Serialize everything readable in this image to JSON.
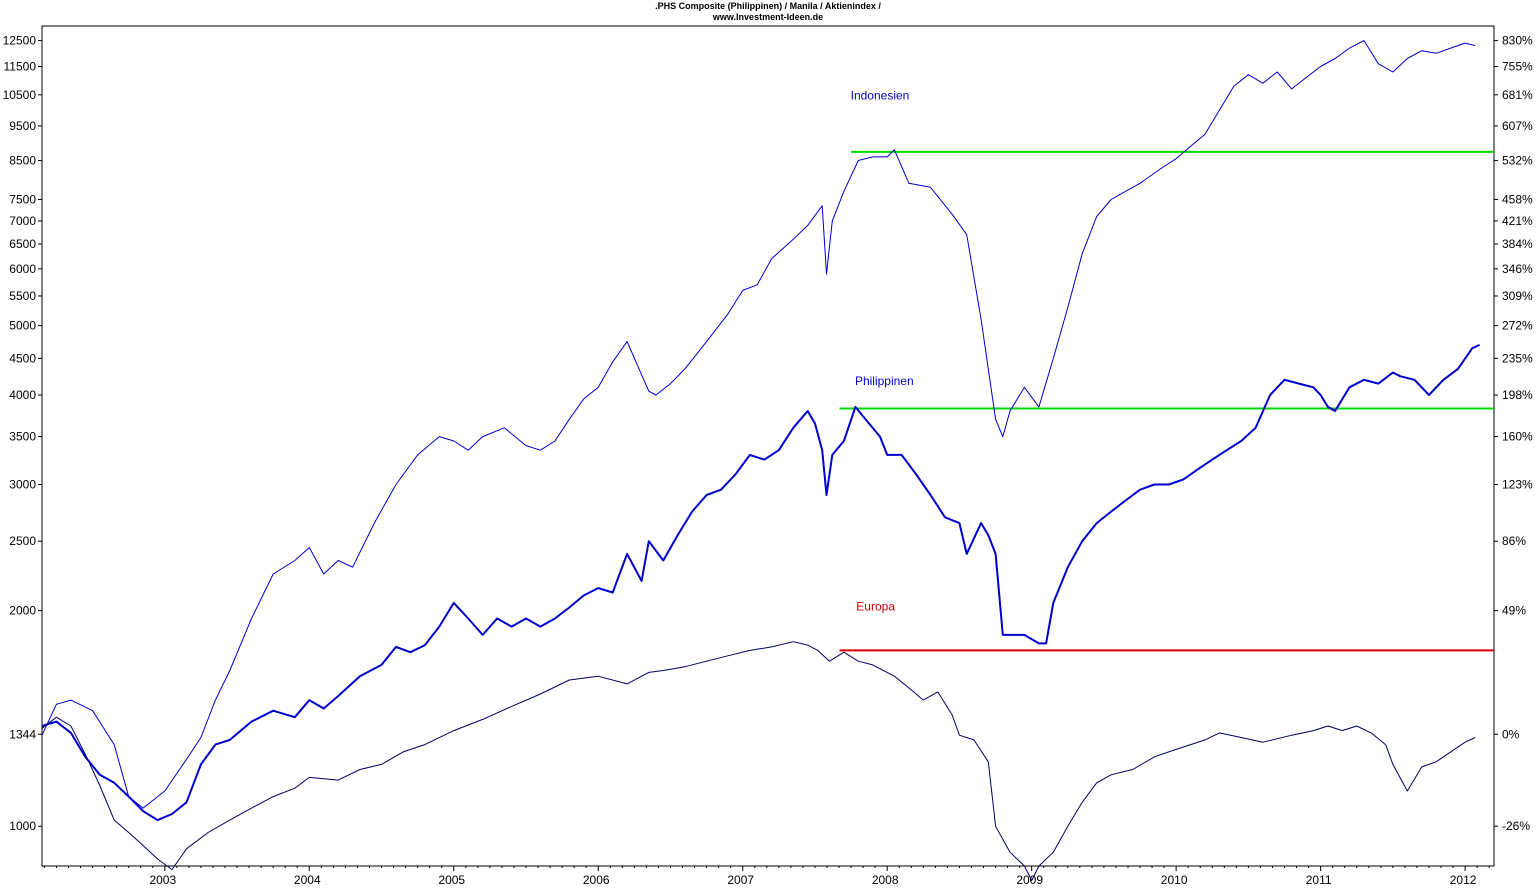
{
  "chart_data": {
    "type": "line",
    "title": ".PHS Composite (Philippinen) / Manila / Aktienindex /",
    "subtitle": "www.Investment-Ideen.de",
    "xlabel": "",
    "ylabel": "",
    "scale": "log",
    "grid": false,
    "legend": "none",
    "xlim": [
      2002.15,
      2012.2
    ],
    "ylim": [
      880,
      13100
    ],
    "x_ticks": [
      "2003",
      "2004",
      "2005",
      "2006",
      "2007",
      "2008",
      "2009",
      "2010",
      "2011",
      "2012"
    ],
    "y_ticks_left": [
      12500,
      11500,
      10500,
      9500,
      8500,
      7500,
      7000,
      6500,
      6000,
      5500,
      5000,
      4500,
      4000,
      3500,
      3000,
      2500,
      2000,
      1344,
      1000
    ],
    "y_ticks_left_labels": [
      "12500",
      "11500",
      "10500",
      "9500",
      "8500",
      "7500",
      "7000",
      "6500",
      "6000",
      "5500",
      "5000",
      "4500",
      "4000",
      "3500",
      "3000",
      "2500",
      "2000",
      "1344",
      "1000"
    ],
    "y_ticks_right": [
      12500,
      11500,
      10500,
      9500,
      8500,
      7500,
      7000,
      6500,
      6000,
      5500,
      5000,
      4500,
      4000,
      3500,
      3000,
      2500,
      2000,
      1344,
      1000
    ],
    "y_ticks_right_labels": [
      "830%",
      "755%",
      "681%",
      "607%",
      "532%",
      "458%",
      "421%",
      "384%",
      "346%",
      "309%",
      "272%",
      "235%",
      "198%",
      "160%",
      "123%",
      "86%",
      "49%",
      "0%",
      "-26%"
    ],
    "annotations": [
      {
        "text": "Indonesien",
        "x": 2007.95,
        "y": 10350,
        "color": "#0000cc"
      },
      {
        "text": "Philippinen",
        "x": 2007.98,
        "y": 4130,
        "color": "#0000cc"
      },
      {
        "text": "Europa",
        "x": 2007.92,
        "y": 2000,
        "color": "#cc0000"
      }
    ],
    "reference_lines": [
      {
        "y": 8740,
        "x_start": 2007.75,
        "x_end": 2012.2,
        "color": "#00dd00"
      },
      {
        "y": 3830,
        "x_start": 2007.67,
        "x_end": 2012.2,
        "color": "#00dd00"
      },
      {
        "y": 1760,
        "x_start": 2007.67,
        "x_end": 2012.2,
        "color": "#dd0000"
      }
    ],
    "series": [
      {
        "color": "#0000cc",
        "width": 1,
        "x": [
          2002.15,
          2002.25,
          2002.35,
          2002.5,
          2002.65,
          2002.75,
          2002.85,
          2003.0,
          2003.15,
          2003.25,
          2003.35,
          2003.45,
          2003.6,
          2003.75,
          2003.9,
          2004.0,
          2004.1,
          2004.2,
          2004.3,
          2004.45,
          2004.6,
          2004.75,
          2004.9,
          2005.0,
          2005.1,
          2005.2,
          2005.35,
          2005.5,
          2005.6,
          2005.7,
          2005.8,
          2005.9,
          2006.0,
          2006.1,
          2006.2,
          2006.35,
          2006.4,
          2006.5,
          2006.6,
          2006.75,
          2006.9,
          2007.0,
          2007.1,
          2007.2,
          2007.35,
          2007.45,
          2007.55,
          2007.58,
          2007.62,
          2007.7,
          2007.8,
          2007.9,
          2008.0,
          2008.05,
          2008.15,
          2008.3,
          2008.45,
          2008.55,
          2008.65,
          2008.75,
          2008.8,
          2008.85,
          2008.95,
          2009.05,
          2009.15,
          2009.25,
          2009.35,
          2009.45,
          2009.55,
          2009.65,
          2009.75,
          2009.9,
          2010.0,
          2010.1,
          2010.2,
          2010.3,
          2010.4,
          2010.5,
          2010.6,
          2010.7,
          2010.8,
          2010.9,
          2011.0,
          2011.1,
          2011.2,
          2011.3,
          2011.4,
          2011.5,
          2011.6,
          2011.7,
          2011.8,
          2011.9,
          2012.0,
          2012.07
        ],
        "values": [
          1340,
          1480,
          1500,
          1450,
          1300,
          1100,
          1060,
          1120,
          1240,
          1330,
          1500,
          1650,
          1950,
          2250,
          2350,
          2450,
          2250,
          2350,
          2300,
          2650,
          3000,
          3300,
          3500,
          3450,
          3350,
          3500,
          3600,
          3400,
          3350,
          3450,
          3700,
          3950,
          4100,
          4450,
          4750,
          4050,
          4000,
          4150,
          4350,
          4750,
          5200,
          5600,
          5700,
          6200,
          6600,
          6900,
          7350,
          5900,
          7000,
          7700,
          8500,
          8600,
          8600,
          8800,
          7900,
          7800,
          7150,
          6700,
          5100,
          3700,
          3500,
          3800,
          4100,
          3850,
          4500,
          5300,
          6300,
          7100,
          7500,
          7700,
          7900,
          8300,
          8550,
          8900,
          9250,
          10000,
          10800,
          11200,
          10900,
          11300,
          10700,
          11100,
          11500,
          11800,
          12200,
          12500,
          11600,
          11300,
          11800,
          12100,
          12000,
          12200,
          12400,
          12300
        ]
      },
      {
        "color": "#0000cc",
        "width": 2,
        "x": [
          2002.15,
          2002.25,
          2002.35,
          2002.45,
          2002.55,
          2002.65,
          2002.75,
          2002.85,
          2002.95,
          2003.05,
          2003.15,
          2003.25,
          2003.35,
          2003.45,
          2003.6,
          2003.75,
          2003.9,
          2004.0,
          2004.1,
          2004.2,
          2004.35,
          2004.5,
          2004.6,
          2004.7,
          2004.8,
          2004.9,
          2005.0,
          2005.1,
          2005.2,
          2005.3,
          2005.4,
          2005.5,
          2005.6,
          2005.7,
          2005.8,
          2005.9,
          2006.0,
          2006.1,
          2006.2,
          2006.3,
          2006.35,
          2006.45,
          2006.55,
          2006.65,
          2006.75,
          2006.85,
          2006.95,
          2007.05,
          2007.15,
          2007.25,
          2007.35,
          2007.45,
          2007.5,
          2007.55,
          2007.58,
          2007.62,
          2007.7,
          2007.78,
          2007.85,
          2007.95,
          2008.0,
          2008.1,
          2008.2,
          2008.3,
          2008.4,
          2008.5,
          2008.55,
          2008.65,
          2008.7,
          2008.75,
          2008.8,
          2008.85,
          2008.95,
          2009.05,
          2009.1,
          2009.15,
          2009.25,
          2009.35,
          2009.45,
          2009.55,
          2009.65,
          2009.75,
          2009.85,
          2009.95,
          2010.05,
          2010.15,
          2010.25,
          2010.35,
          2010.45,
          2010.55,
          2010.65,
          2010.75,
          2010.85,
          2010.95,
          2011.0,
          2011.05,
          2011.1,
          2011.2,
          2011.3,
          2011.4,
          2011.5,
          2011.55,
          2011.65,
          2011.75,
          2011.85,
          2011.95,
          2012.05,
          2012.1
        ],
        "values": [
          1380,
          1400,
          1350,
          1250,
          1180,
          1150,
          1100,
          1050,
          1020,
          1040,
          1080,
          1220,
          1300,
          1320,
          1400,
          1450,
          1420,
          1500,
          1460,
          1520,
          1620,
          1680,
          1780,
          1750,
          1790,
          1900,
          2050,
          1950,
          1850,
          1950,
          1900,
          1950,
          1900,
          1950,
          2020,
          2100,
          2150,
          2120,
          2400,
          2200,
          2500,
          2350,
          2550,
          2750,
          2900,
          2950,
          3100,
          3300,
          3250,
          3350,
          3600,
          3800,
          3650,
          3350,
          2900,
          3300,
          3450,
          3850,
          3700,
          3500,
          3300,
          3300,
          3100,
          2900,
          2700,
          2650,
          2400,
          2650,
          2550,
          2400,
          1850,
          1850,
          1850,
          1800,
          1800,
          2050,
          2300,
          2500,
          2650,
          2750,
          2850,
          2950,
          3000,
          3000,
          3050,
          3150,
          3250,
          3350,
          3450,
          3600,
          4000,
          4200,
          4150,
          4100,
          4000,
          3850,
          3800,
          4100,
          4200,
          4150,
          4300,
          4250,
          4200,
          4000,
          4200,
          4350,
          4650,
          4700
        ]
      },
      {
        "color": "#000066",
        "width": 1,
        "x": [
          2002.15,
          2002.25,
          2002.35,
          2002.45,
          2002.55,
          2002.65,
          2002.75,
          2002.85,
          2002.95,
          2003.05,
          2003.15,
          2003.3,
          2003.45,
          2003.6,
          2003.75,
          2003.9,
          2004.0,
          2004.2,
          2004.35,
          2004.5,
          2004.65,
          2004.8,
          2005.0,
          2005.2,
          2005.4,
          2005.6,
          2005.8,
          2006.0,
          2006.2,
          2006.3,
          2006.35,
          2006.45,
          2006.6,
          2006.75,
          2006.9,
          2007.05,
          2007.2,
          2007.35,
          2007.45,
          2007.52,
          2007.6,
          2007.7,
          2007.8,
          2007.9,
          2008.05,
          2008.15,
          2008.25,
          2008.35,
          2008.45,
          2008.5,
          2008.6,
          2008.7,
          2008.75,
          2008.85,
          2008.95,
          2009.0,
          2009.05,
          2009.15,
          2009.25,
          2009.35,
          2009.45,
          2009.55,
          2009.7,
          2009.85,
          2010.0,
          2010.1,
          2010.2,
          2010.3,
          2010.45,
          2010.6,
          2010.8,
          2010.95,
          2011.05,
          2011.15,
          2011.25,
          2011.35,
          2011.45,
          2011.5,
          2011.6,
          2011.7,
          2011.8,
          2011.9,
          2012.0,
          2012.07
        ],
        "values": [
          1370,
          1420,
          1380,
          1260,
          1140,
          1020,
          980,
          940,
          900,
          870,
          930,
          980,
          1020,
          1060,
          1100,
          1130,
          1170,
          1160,
          1200,
          1220,
          1270,
          1300,
          1360,
          1410,
          1470,
          1530,
          1600,
          1620,
          1580,
          1620,
          1640,
          1650,
          1670,
          1700,
          1730,
          1760,
          1780,
          1810,
          1790,
          1760,
          1700,
          1750,
          1700,
          1680,
          1620,
          1560,
          1500,
          1540,
          1430,
          1340,
          1320,
          1230,
          1000,
          920,
          880,
          840,
          880,
          920,
          1000,
          1080,
          1150,
          1180,
          1200,
          1250,
          1280,
          1300,
          1320,
          1350,
          1330,
          1310,
          1340,
          1360,
          1380,
          1360,
          1380,
          1350,
          1300,
          1220,
          1120,
          1210,
          1230,
          1270,
          1310,
          1330
        ]
      }
    ]
  }
}
